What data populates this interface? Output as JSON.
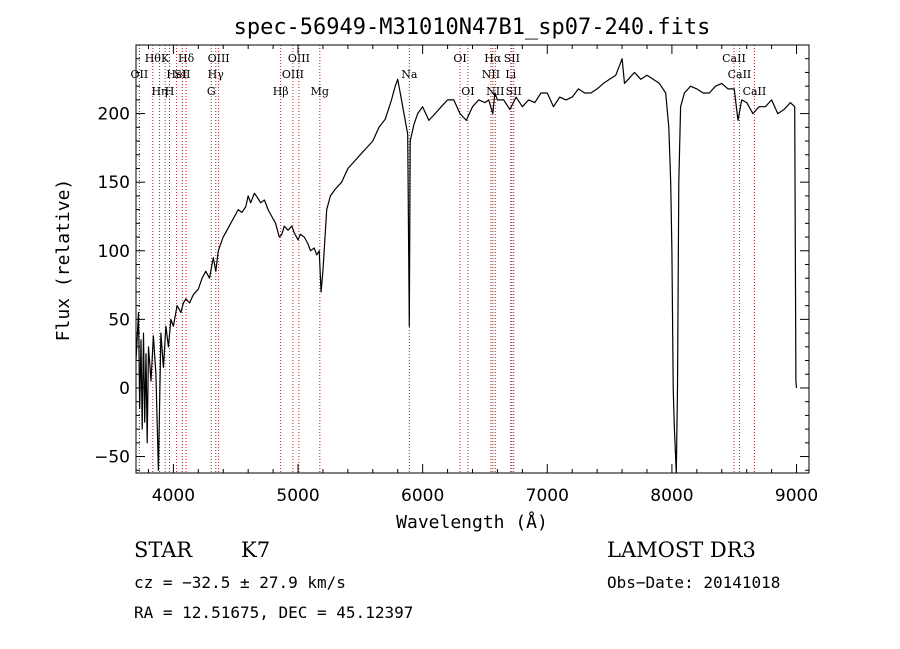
{
  "chart_data": {
    "type": "line",
    "title": "spec-56949-M31010N47B1_sp07-240.fits",
    "xlabel": "Wavelength (Å)",
    "ylabel": "Flux (relative)",
    "xlim": [
      3700,
      9100
    ],
    "ylim": [
      -62,
      250
    ],
    "x_ticks": [
      4000,
      5000,
      6000,
      7000,
      8000,
      9000
    ],
    "x_tick_labels": [
      "4000",
      "5000",
      "6000",
      "7000",
      "8000",
      "9000"
    ],
    "y_ticks": [
      -50,
      0,
      50,
      100,
      150,
      200
    ],
    "y_tick_labels": [
      "−50",
      "0",
      "50",
      "100",
      "150",
      "200"
    ],
    "grid": false,
    "line_color": "#000000",
    "marker_color": "#b22222",
    "series": [
      {
        "name": "flux",
        "points": [
          [
            3700,
            20
          ],
          [
            3720,
            55
          ],
          [
            3730,
            -15
          ],
          [
            3740,
            35
          ],
          [
            3750,
            -30
          ],
          [
            3760,
            40
          ],
          [
            3770,
            -25
          ],
          [
            3780,
            25
          ],
          [
            3790,
            -40
          ],
          [
            3800,
            30
          ],
          [
            3820,
            5
          ],
          [
            3840,
            38
          ],
          [
            3860,
            10
          ],
          [
            3880,
            -60
          ],
          [
            3900,
            40
          ],
          [
            3920,
            15
          ],
          [
            3940,
            45
          ],
          [
            3960,
            30
          ],
          [
            3980,
            50
          ],
          [
            4000,
            45
          ],
          [
            4030,
            60
          ],
          [
            4060,
            55
          ],
          [
            4080,
            62
          ],
          [
            4100,
            65
          ],
          [
            4130,
            62
          ],
          [
            4160,
            68
          ],
          [
            4200,
            72
          ],
          [
            4230,
            80
          ],
          [
            4260,
            85
          ],
          [
            4290,
            80
          ],
          [
            4320,
            95
          ],
          [
            4340,
            85
          ],
          [
            4360,
            100
          ],
          [
            4380,
            105
          ],
          [
            4400,
            110
          ],
          [
            4430,
            115
          ],
          [
            4460,
            120
          ],
          [
            4490,
            125
          ],
          [
            4520,
            130
          ],
          [
            4550,
            128
          ],
          [
            4580,
            132
          ],
          [
            4600,
            140
          ],
          [
            4620,
            135
          ],
          [
            4650,
            142
          ],
          [
            4680,
            138
          ],
          [
            4700,
            135
          ],
          [
            4730,
            137
          ],
          [
            4760,
            130
          ],
          [
            4790,
            125
          ],
          [
            4820,
            120
          ],
          [
            4850,
            110
          ],
          [
            4870,
            112
          ],
          [
            4890,
            118
          ],
          [
            4920,
            115
          ],
          [
            4950,
            118
          ],
          [
            4970,
            113
          ],
          [
            5000,
            108
          ],
          [
            5020,
            112
          ],
          [
            5050,
            110
          ],
          [
            5080,
            105
          ],
          [
            5100,
            100
          ],
          [
            5130,
            102
          ],
          [
            5150,
            97
          ],
          [
            5170,
            100
          ],
          [
            5185,
            70
          ],
          [
            5200,
            85
          ],
          [
            5230,
            130
          ],
          [
            5260,
            140
          ],
          [
            5300,
            145
          ],
          [
            5350,
            150
          ],
          [
            5400,
            160
          ],
          [
            5450,
            165
          ],
          [
            5500,
            170
          ],
          [
            5550,
            175
          ],
          [
            5600,
            180
          ],
          [
            5650,
            190
          ],
          [
            5700,
            196
          ],
          [
            5750,
            210
          ],
          [
            5780,
            220
          ],
          [
            5800,
            225
          ],
          [
            5830,
            210
          ],
          [
            5860,
            195
          ],
          [
            5880,
            185
          ],
          [
            5893,
            45
          ],
          [
            5900,
            180
          ],
          [
            5930,
            192
          ],
          [
            5960,
            200
          ],
          [
            6000,
            205
          ],
          [
            6050,
            195
          ],
          [
            6100,
            200
          ],
          [
            6150,
            205
          ],
          [
            6200,
            210
          ],
          [
            6250,
            210
          ],
          [
            6300,
            200
          ],
          [
            6350,
            195
          ],
          [
            6400,
            205
          ],
          [
            6450,
            210
          ],
          [
            6500,
            208
          ],
          [
            6530,
            210
          ],
          [
            6563,
            200
          ],
          [
            6580,
            215
          ],
          [
            6600,
            210
          ],
          [
            6650,
            210
          ],
          [
            6700,
            203
          ],
          [
            6750,
            212
          ],
          [
            6800,
            205
          ],
          [
            6850,
            210
          ],
          [
            6900,
            208
          ],
          [
            6950,
            215
          ],
          [
            7000,
            215
          ],
          [
            7050,
            205
          ],
          [
            7100,
            212
          ],
          [
            7150,
            210
          ],
          [
            7200,
            212
          ],
          [
            7250,
            218
          ],
          [
            7300,
            215
          ],
          [
            7350,
            215
          ],
          [
            7400,
            218
          ],
          [
            7450,
            222
          ],
          [
            7500,
            225
          ],
          [
            7550,
            228
          ],
          [
            7600,
            240
          ],
          [
            7620,
            222
          ],
          [
            7650,
            225
          ],
          [
            7700,
            230
          ],
          [
            7750,
            225
          ],
          [
            7800,
            228
          ],
          [
            7850,
            225
          ],
          [
            7900,
            222
          ],
          [
            7950,
            215
          ],
          [
            7975,
            190
          ],
          [
            7990,
            150
          ],
          [
            8000,
            100
          ],
          [
            8010,
            0
          ],
          [
            8020,
            -30
          ],
          [
            8035,
            -62
          ],
          [
            8045,
            0
          ],
          [
            8055,
            150
          ],
          [
            8070,
            205
          ],
          [
            8100,
            215
          ],
          [
            8150,
            220
          ],
          [
            8200,
            218
          ],
          [
            8250,
            215
          ],
          [
            8300,
            215
          ],
          [
            8350,
            220
          ],
          [
            8400,
            222
          ],
          [
            8450,
            218
          ],
          [
            8500,
            218
          ],
          [
            8530,
            195
          ],
          [
            8560,
            210
          ],
          [
            8600,
            208
          ],
          [
            8650,
            200
          ],
          [
            8700,
            205
          ],
          [
            8750,
            205
          ],
          [
            8800,
            210
          ],
          [
            8850,
            200
          ],
          [
            8900,
            203
          ],
          [
            8950,
            208
          ],
          [
            8985,
            205
          ],
          [
            8995,
            5
          ],
          [
            9000,
            0
          ]
        ]
      }
    ],
    "line_markers": [
      {
        "wavelength": 3727,
        "label": "OII",
        "row": 2
      },
      {
        "wavelength": 3835,
        "label": "Hθ",
        "row": 1
      },
      {
        "wavelength": 3889,
        "label": "Hη",
        "row": 3
      },
      {
        "wavelength": 3934,
        "label": "K",
        "row": 1
      },
      {
        "wavelength": 3969,
        "label": "H",
        "row": 3
      },
      {
        "wavelength": 4026,
        "label": "HeI",
        "row": 2
      },
      {
        "wavelength": 4072,
        "label": "SII",
        "row": 2
      },
      {
        "wavelength": 4102,
        "label": "Hδ",
        "row": 1
      },
      {
        "wavelength": 4304,
        "label": "G",
        "row": 3
      },
      {
        "wavelength": 4340,
        "label": "Hγ",
        "row": 2
      },
      {
        "wavelength": 4363,
        "label": "OIII",
        "row": 1
      },
      {
        "wavelength": 4861,
        "label": "Hβ",
        "row": 3
      },
      {
        "wavelength": 4959,
        "label": "OIII",
        "row": 2
      },
      {
        "wavelength": 5007,
        "label": "OIII",
        "row": 1
      },
      {
        "wavelength": 5175,
        "label": "Mg",
        "row": 3
      },
      {
        "wavelength": 5893,
        "label": "Na",
        "row": 2
      },
      {
        "wavelength": 6300,
        "label": "OI",
        "row": 1
      },
      {
        "wavelength": 6363,
        "label": "OI",
        "row": 3
      },
      {
        "wavelength": 6548,
        "label": "NII",
        "row": 2
      },
      {
        "wavelength": 6563,
        "label": "Hα",
        "row": 1
      },
      {
        "wavelength": 6583,
        "label": "NII",
        "row": 3
      },
      {
        "wavelength": 6707,
        "label": "Li",
        "row": 2
      },
      {
        "wavelength": 6716,
        "label": "SII",
        "row": 1
      },
      {
        "wavelength": 6731,
        "label": "SII",
        "row": 3
      },
      {
        "wavelength": 8498,
        "label": "CaII",
        "row": 1
      },
      {
        "wavelength": 8542,
        "label": "CaII",
        "row": 2
      },
      {
        "wavelength": 8662,
        "label": "CaII",
        "row": 3
      }
    ]
  },
  "info": {
    "class": "STAR",
    "subclass": "K7",
    "survey": "LAMOST DR3",
    "redshift": "cz = −32.5 ± 27.9 km/s",
    "obs_date": "Obs−Date: 20141018",
    "coords": "RA =  12.51675, DEC =  45.12397"
  }
}
